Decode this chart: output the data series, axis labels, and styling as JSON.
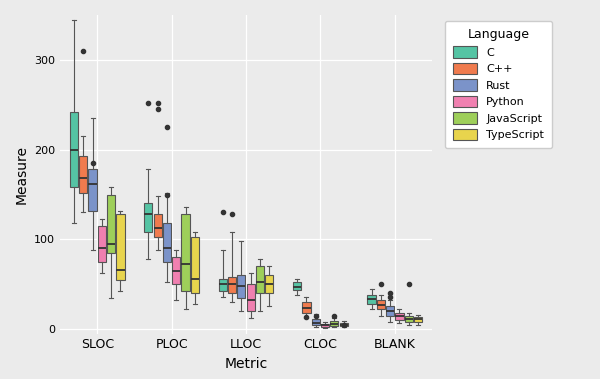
{
  "metrics": [
    "SLOC",
    "PLOC",
    "LLOC",
    "CLOC",
    "BLANK"
  ],
  "languages": [
    "C",
    "C++",
    "Rust",
    "Python",
    "JavaScript",
    "TypeScript"
  ],
  "colors": {
    "C": "#55c4a4",
    "C++": "#f07b4e",
    "Rust": "#7b93c9",
    "Python": "#f080b0",
    "JavaScript": "#9ecf5a",
    "TypeScript": "#e8d44d"
  },
  "background_color": "#ebebeb",
  "title": "Language",
  "xlabel": "Metric",
  "ylabel": "Measure",
  "ylim": [
    -5,
    350
  ],
  "box_data": {
    "SLOC": {
      "C": {
        "whislo": 118,
        "q1": 158,
        "med": 200,
        "q3": 242,
        "whishi": 345,
        "fliers": []
      },
      "C++": {
        "whislo": 130,
        "q1": 152,
        "med": 168,
        "q3": 193,
        "whishi": 215,
        "fliers": [
          310
        ]
      },
      "Rust": {
        "whislo": 88,
        "q1": 132,
        "med": 162,
        "q3": 178,
        "whishi": 235,
        "fliers": [
          185
        ]
      },
      "Python": {
        "whislo": 62,
        "q1": 75,
        "med": 90,
        "q3": 115,
        "whishi": 123,
        "fliers": []
      },
      "JavaScript": {
        "whislo": 35,
        "q1": 85,
        "med": 95,
        "q3": 150,
        "whishi": 158,
        "fliers": []
      },
      "TypeScript": {
        "whislo": 42,
        "q1": 55,
        "med": 66,
        "q3": 128,
        "whishi": 132,
        "fliers": []
      }
    },
    "PLOC": {
      "C": {
        "whislo": 78,
        "q1": 108,
        "med": 128,
        "q3": 140,
        "whishi": 178,
        "fliers": [
          252
        ]
      },
      "C++": {
        "whislo": 88,
        "q1": 103,
        "med": 113,
        "q3": 128,
        "whishi": 148,
        "fliers": [
          252,
          245
        ]
      },
      "Rust": {
        "whislo": 52,
        "q1": 75,
        "med": 90,
        "q3": 118,
        "whishi": 152,
        "fliers": [
          225,
          150
        ]
      },
      "Python": {
        "whislo": 32,
        "q1": 50,
        "med": 65,
        "q3": 80,
        "whishi": 88,
        "fliers": []
      },
      "JavaScript": {
        "whislo": 22,
        "q1": 42,
        "med": 73,
        "q3": 128,
        "whishi": 136,
        "fliers": []
      },
      "TypeScript": {
        "whislo": 28,
        "q1": 40,
        "med": 56,
        "q3": 103,
        "whishi": 108,
        "fliers": []
      }
    },
    "LLOC": {
      "C": {
        "whislo": 36,
        "q1": 42,
        "med": 50,
        "q3": 56,
        "whishi": 88,
        "fliers": [
          130
        ]
      },
      "C++": {
        "whislo": 30,
        "q1": 40,
        "med": 50,
        "q3": 58,
        "whishi": 108,
        "fliers": [
          128
        ]
      },
      "Rust": {
        "whislo": 20,
        "q1": 35,
        "med": 48,
        "q3": 60,
        "whishi": 98,
        "fliers": []
      },
      "Python": {
        "whislo": 12,
        "q1": 20,
        "med": 32,
        "q3": 50,
        "whishi": 62,
        "fliers": []
      },
      "JavaScript": {
        "whislo": 20,
        "q1": 40,
        "med": 53,
        "q3": 70,
        "whishi": 78,
        "fliers": []
      },
      "TypeScript": {
        "whislo": 26,
        "q1": 40,
        "med": 50,
        "q3": 60,
        "whishi": 70,
        "fliers": []
      }
    },
    "CLOC": {
      "C": {
        "whislo": 38,
        "q1": 43,
        "med": 47,
        "q3": 52,
        "whishi": 56,
        "fliers": []
      },
      "C++": {
        "whislo": 12,
        "q1": 18,
        "med": 24,
        "q3": 30,
        "whishi": 36,
        "fliers": [
          13
        ]
      },
      "Rust": {
        "whislo": 2,
        "q1": 4,
        "med": 7,
        "q3": 11,
        "whishi": 17,
        "fliers": [
          14
        ]
      },
      "Python": {
        "whislo": 1,
        "q1": 2,
        "med": 4,
        "q3": 6,
        "whishi": 8,
        "fliers": []
      },
      "JavaScript": {
        "whislo": 2,
        "q1": 3,
        "med": 6,
        "q3": 9,
        "whishi": 12,
        "fliers": [
          14
        ]
      },
      "TypeScript": {
        "whislo": 2,
        "q1": 3,
        "med": 5,
        "q3": 7,
        "whishi": 9,
        "fliers": [
          5
        ]
      }
    },
    "BLANK": {
      "C": {
        "whislo": 22,
        "q1": 28,
        "med": 33,
        "q3": 38,
        "whishi": 45,
        "fliers": []
      },
      "C++": {
        "whislo": 15,
        "q1": 22,
        "med": 27,
        "q3": 32,
        "whishi": 38,
        "fliers": [
          50
        ]
      },
      "Rust": {
        "whislo": 8,
        "q1": 14,
        "med": 20,
        "q3": 26,
        "whishi": 32,
        "fliers": [
          36,
          40
        ]
      },
      "Python": {
        "whislo": 7,
        "q1": 10,
        "med": 14,
        "q3": 18,
        "whishi": 22,
        "fliers": []
      },
      "JavaScript": {
        "whislo": 5,
        "q1": 8,
        "med": 11,
        "q3": 14,
        "whishi": 18,
        "fliers": [
          50
        ]
      },
      "TypeScript": {
        "whislo": 5,
        "q1": 8,
        "med": 11,
        "q3": 13,
        "whishi": 16,
        "fliers": []
      }
    }
  }
}
